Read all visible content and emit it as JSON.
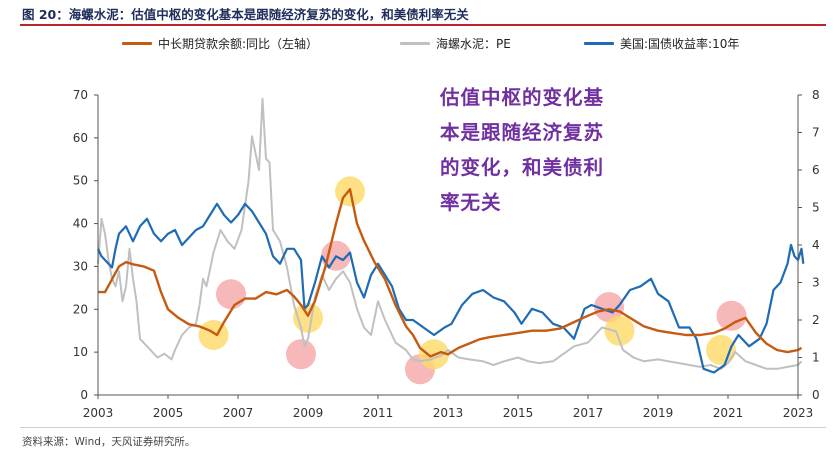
{
  "figure": {
    "title": "图 20：海螺水泥：估值中枢的变化基本是跟随经济复苏的变化，和美债利率无关",
    "source": "资料来源：Wind，天风证券研究所。",
    "annotation_lines": [
      "估值中枢的变化基",
      "本是跟随经济复苏",
      "的变化，和美债利",
      "率无关"
    ]
  },
  "colors": {
    "title": "#1f2d5a",
    "title_rule": "#b9252b",
    "loan": "#c55a11",
    "pe": "#c0c0c0",
    "yield": "#1f6bb5",
    "annotation": "#7030a0",
    "highlight_yellow": "#ffd966",
    "highlight_pink": "#f4a6a6"
  },
  "chart_data": {
    "type": "line",
    "xlabel": "",
    "x_ticks": [
      "2003",
      "2005",
      "2007",
      "2009",
      "2011",
      "2013",
      "2015",
      "2017",
      "2019",
      "2021",
      "2023"
    ],
    "xlim": [
      2003.0,
      2023.0
    ],
    "ylabel_left": "",
    "ylabel_right": "",
    "ylim_left": [
      0,
      70
    ],
    "yticks_left": [
      0,
      10,
      20,
      30,
      40,
      50,
      60,
      70
    ],
    "ylim_right": [
      0,
      8
    ],
    "yticks_right": [
      0,
      1,
      2,
      3,
      4,
      5,
      6,
      7,
      8
    ],
    "legend_position": "top",
    "grid": false,
    "series": [
      {
        "name": "中长期贷款余额:同比（左轴）",
        "axis": "left",
        "color_key": "loan",
        "points": [
          [
            2003.0,
            24
          ],
          [
            2003.2,
            24
          ],
          [
            2003.4,
            27
          ],
          [
            2003.6,
            30
          ],
          [
            2003.8,
            31
          ],
          [
            2004.0,
            30.5
          ],
          [
            2004.3,
            30
          ],
          [
            2004.6,
            29
          ],
          [
            2004.8,
            24
          ],
          [
            2005.0,
            20
          ],
          [
            2005.3,
            18
          ],
          [
            2005.6,
            16.5
          ],
          [
            2005.9,
            16
          ],
          [
            2006.2,
            15
          ],
          [
            2006.4,
            14
          ],
          [
            2006.6,
            17
          ],
          [
            2006.9,
            21
          ],
          [
            2007.2,
            22.5
          ],
          [
            2007.5,
            22.5
          ],
          [
            2007.8,
            24
          ],
          [
            2008.1,
            23.5
          ],
          [
            2008.4,
            24.5
          ],
          [
            2008.6,
            23
          ],
          [
            2008.8,
            21
          ],
          [
            2009.0,
            18.5
          ],
          [
            2009.2,
            22
          ],
          [
            2009.5,
            30
          ],
          [
            2009.8,
            40
          ],
          [
            2010.0,
            46
          ],
          [
            2010.2,
            48
          ],
          [
            2010.4,
            40
          ],
          [
            2010.6,
            36
          ],
          [
            2010.9,
            31
          ],
          [
            2011.2,
            27
          ],
          [
            2011.5,
            21
          ],
          [
            2011.8,
            16
          ],
          [
            2012.0,
            14
          ],
          [
            2012.2,
            11
          ],
          [
            2012.5,
            9
          ],
          [
            2012.8,
            10
          ],
          [
            2013.0,
            9.5
          ],
          [
            2013.3,
            11
          ],
          [
            2013.6,
            12
          ],
          [
            2013.9,
            13
          ],
          [
            2014.2,
            13.5
          ],
          [
            2014.6,
            14
          ],
          [
            2015.0,
            14.5
          ],
          [
            2015.4,
            15
          ],
          [
            2015.8,
            15
          ],
          [
            2016.2,
            15.5
          ],
          [
            2016.6,
            17
          ],
          [
            2017.0,
            18.5
          ],
          [
            2017.3,
            19.5
          ],
          [
            2017.6,
            20
          ],
          [
            2017.9,
            19.5
          ],
          [
            2018.2,
            18
          ],
          [
            2018.6,
            16
          ],
          [
            2019.0,
            15
          ],
          [
            2019.4,
            14.5
          ],
          [
            2019.8,
            14
          ],
          [
            2020.2,
            14
          ],
          [
            2020.6,
            14.5
          ],
          [
            2020.9,
            15.5
          ],
          [
            2021.2,
            17
          ],
          [
            2021.5,
            18
          ],
          [
            2021.8,
            14.5
          ],
          [
            2022.1,
            12
          ],
          [
            2022.4,
            10.5
          ],
          [
            2022.7,
            10
          ],
          [
            2023.0,
            10.5
          ],
          [
            2023.1,
            11
          ]
        ]
      },
      {
        "name": "海螺水泥：PE",
        "axis": "right",
        "color_key": "pe",
        "points": [
          [
            2003.0,
            3.5
          ],
          [
            2003.1,
            4.7
          ],
          [
            2003.2,
            4.3
          ],
          [
            2003.3,
            3.6
          ],
          [
            2003.4,
            3.1
          ],
          [
            2003.5,
            2.9
          ],
          [
            2003.6,
            3.3
          ],
          [
            2003.7,
            2.5
          ],
          [
            2003.8,
            2.9
          ],
          [
            2003.9,
            3.9
          ],
          [
            2004.0,
            3.1
          ],
          [
            2004.1,
            2.5
          ],
          [
            2004.2,
            1.5
          ],
          [
            2004.5,
            1.2
          ],
          [
            2004.7,
            1.0
          ],
          [
            2004.9,
            1.1
          ],
          [
            2005.1,
            0.95
          ],
          [
            2005.2,
            1.2
          ],
          [
            2005.4,
            1.6
          ],
          [
            2005.6,
            1.8
          ],
          [
            2005.8,
            1.9
          ],
          [
            2005.9,
            2.4
          ],
          [
            2006.0,
            3.1
          ],
          [
            2006.1,
            2.9
          ],
          [
            2006.3,
            3.8
          ],
          [
            2006.5,
            4.4
          ],
          [
            2006.7,
            4.1
          ],
          [
            2006.9,
            3.9
          ],
          [
            2007.1,
            4.4
          ],
          [
            2007.3,
            5.7
          ],
          [
            2007.4,
            6.9
          ],
          [
            2007.6,
            6.0
          ],
          [
            2007.7,
            7.9
          ],
          [
            2007.8,
            6.3
          ],
          [
            2007.9,
            6.2
          ],
          [
            2008.0,
            4.4
          ],
          [
            2008.2,
            4.1
          ],
          [
            2008.4,
            3.4
          ],
          [
            2008.6,
            2.4
          ],
          [
            2008.8,
            1.8
          ],
          [
            2008.9,
            1.3
          ],
          [
            2009.0,
            1.5
          ],
          [
            2009.2,
            2.6
          ],
          [
            2009.4,
            3.2
          ],
          [
            2009.6,
            2.8
          ],
          [
            2009.8,
            3.1
          ],
          [
            2010.0,
            3.3
          ],
          [
            2010.2,
            3.0
          ],
          [
            2010.4,
            2.3
          ],
          [
            2010.6,
            1.8
          ],
          [
            2010.8,
            1.6
          ],
          [
            2011.0,
            2.5
          ],
          [
            2011.2,
            2.0
          ],
          [
            2011.5,
            1.4
          ],
          [
            2011.8,
            1.2
          ],
          [
            2012.0,
            0.95
          ],
          [
            2012.2,
            0.9
          ],
          [
            2012.5,
            0.95
          ],
          [
            2012.8,
            1.05
          ],
          [
            2013.0,
            1.2
          ],
          [
            2013.3,
            1.0
          ],
          [
            2013.6,
            0.95
          ],
          [
            2014.0,
            0.9
          ],
          [
            2014.3,
            0.8
          ],
          [
            2014.6,
            0.9
          ],
          [
            2015.0,
            1.0
          ],
          [
            2015.3,
            0.9
          ],
          [
            2015.6,
            0.85
          ],
          [
            2016.0,
            0.9
          ],
          [
            2016.3,
            1.1
          ],
          [
            2016.6,
            1.3
          ],
          [
            2017.0,
            1.4
          ],
          [
            2017.4,
            1.8
          ],
          [
            2017.8,
            1.7
          ],
          [
            2018.0,
            1.2
          ],
          [
            2018.3,
            1.0
          ],
          [
            2018.6,
            0.9
          ],
          [
            2019.0,
            0.95
          ],
          [
            2019.3,
            0.9
          ],
          [
            2019.6,
            0.85
          ],
          [
            2019.9,
            0.8
          ],
          [
            2020.2,
            0.75
          ],
          [
            2020.5,
            0.8
          ],
          [
            2020.8,
            0.7
          ],
          [
            2021.0,
            0.85
          ],
          [
            2021.2,
            1.15
          ],
          [
            2021.5,
            0.9
          ],
          [
            2021.8,
            0.8
          ],
          [
            2022.1,
            0.7
          ],
          [
            2022.4,
            0.7
          ],
          [
            2022.7,
            0.75
          ],
          [
            2023.0,
            0.8
          ],
          [
            2023.1,
            0.9
          ]
        ]
      },
      {
        "name": "美国:国债收益率:10年",
        "axis": "right",
        "color_key": "yield",
        "points": [
          [
            2003.0,
            3.9
          ],
          [
            2003.1,
            3.7
          ],
          [
            2003.3,
            3.5
          ],
          [
            2003.4,
            3.4
          ],
          [
            2003.5,
            3.9
          ],
          [
            2003.6,
            4.3
          ],
          [
            2003.8,
            4.5
          ],
          [
            2004.0,
            4.1
          ],
          [
            2004.2,
            4.5
          ],
          [
            2004.4,
            4.7
          ],
          [
            2004.6,
            4.3
          ],
          [
            2004.8,
            4.1
          ],
          [
            2005.0,
            4.3
          ],
          [
            2005.2,
            4.4
          ],
          [
            2005.4,
            4.0
          ],
          [
            2005.6,
            4.2
          ],
          [
            2005.8,
            4.4
          ],
          [
            2006.0,
            4.5
          ],
          [
            2006.2,
            4.8
          ],
          [
            2006.4,
            5.1
          ],
          [
            2006.6,
            4.8
          ],
          [
            2006.8,
            4.6
          ],
          [
            2007.0,
            4.8
          ],
          [
            2007.2,
            5.1
          ],
          [
            2007.4,
            4.9
          ],
          [
            2007.6,
            4.6
          ],
          [
            2007.8,
            4.3
          ],
          [
            2008.0,
            3.7
          ],
          [
            2008.2,
            3.5
          ],
          [
            2008.4,
            3.9
          ],
          [
            2008.6,
            3.9
          ],
          [
            2008.8,
            3.6
          ],
          [
            2008.9,
            2.3
          ],
          [
            2009.0,
            2.4
          ],
          [
            2009.2,
            3.0
          ],
          [
            2009.4,
            3.7
          ],
          [
            2009.6,
            3.4
          ],
          [
            2009.8,
            3.7
          ],
          [
            2010.0,
            3.6
          ],
          [
            2010.2,
            3.8
          ],
          [
            2010.4,
            3.0
          ],
          [
            2010.6,
            2.6
          ],
          [
            2010.8,
            3.2
          ],
          [
            2011.0,
            3.5
          ],
          [
            2011.2,
            3.2
          ],
          [
            2011.4,
            2.9
          ],
          [
            2011.6,
            2.3
          ],
          [
            2011.8,
            2.0
          ],
          [
            2012.0,
            2.0
          ],
          [
            2012.3,
            1.8
          ],
          [
            2012.6,
            1.6
          ],
          [
            2012.9,
            1.8
          ],
          [
            2013.1,
            1.9
          ],
          [
            2013.4,
            2.4
          ],
          [
            2013.7,
            2.7
          ],
          [
            2014.0,
            2.8
          ],
          [
            2014.3,
            2.6
          ],
          [
            2014.6,
            2.5
          ],
          [
            2014.9,
            2.2
          ],
          [
            2015.1,
            1.9
          ],
          [
            2015.4,
            2.3
          ],
          [
            2015.7,
            2.2
          ],
          [
            2016.0,
            1.9
          ],
          [
            2016.3,
            1.8
          ],
          [
            2016.6,
            1.5
          ],
          [
            2016.9,
            2.3
          ],
          [
            2017.1,
            2.4
          ],
          [
            2017.4,
            2.3
          ],
          [
            2017.7,
            2.2
          ],
          [
            2017.9,
            2.4
          ],
          [
            2018.2,
            2.8
          ],
          [
            2018.5,
            2.9
          ],
          [
            2018.8,
            3.1
          ],
          [
            2019.0,
            2.7
          ],
          [
            2019.3,
            2.5
          ],
          [
            2019.6,
            1.8
          ],
          [
            2019.9,
            1.8
          ],
          [
            2020.1,
            1.5
          ],
          [
            2020.3,
            0.7
          ],
          [
            2020.6,
            0.6
          ],
          [
            2020.9,
            0.8
          ],
          [
            2021.1,
            1.3
          ],
          [
            2021.3,
            1.6
          ],
          [
            2021.6,
            1.3
          ],
          [
            2021.9,
            1.5
          ],
          [
            2022.1,
            1.9
          ],
          [
            2022.3,
            2.8
          ],
          [
            2022.5,
            3.0
          ],
          [
            2022.7,
            3.5
          ],
          [
            2022.8,
            4.0
          ],
          [
            2022.9,
            3.7
          ],
          [
            2023.0,
            3.6
          ],
          [
            2023.1,
            3.9
          ],
          [
            2023.15,
            3.5
          ]
        ]
      }
    ],
    "highlights": [
      {
        "color_key": "highlight_yellow",
        "x": 2006.3,
        "axis": "left",
        "y": 14
      },
      {
        "color_key": "highlight_pink",
        "x": 2006.8,
        "axis": "left",
        "y": 23.5
      },
      {
        "color_key": "highlight_pink",
        "x": 2008.8,
        "axis": "left",
        "y": 9.5
      },
      {
        "color_key": "highlight_yellow",
        "x": 2009.0,
        "axis": "left",
        "y": 18
      },
      {
        "color_key": "highlight_pink",
        "x": 2009.8,
        "axis": "left",
        "y": 32.5
      },
      {
        "color_key": "highlight_yellow",
        "x": 2010.2,
        "axis": "left",
        "y": 47.5
      },
      {
        "color_key": "highlight_pink",
        "x": 2012.2,
        "axis": "left",
        "y": 6
      },
      {
        "color_key": "highlight_yellow",
        "x": 2012.6,
        "axis": "left",
        "y": 9.5
      },
      {
        "color_key": "highlight_pink",
        "x": 2017.6,
        "axis": "left",
        "y": 20.5
      },
      {
        "color_key": "highlight_yellow",
        "x": 2017.9,
        "axis": "left",
        "y": 15
      },
      {
        "color_key": "highlight_yellow",
        "x": 2020.8,
        "axis": "left",
        "y": 10.5
      },
      {
        "color_key": "highlight_pink",
        "x": 2021.1,
        "axis": "left",
        "y": 18.5
      }
    ]
  }
}
